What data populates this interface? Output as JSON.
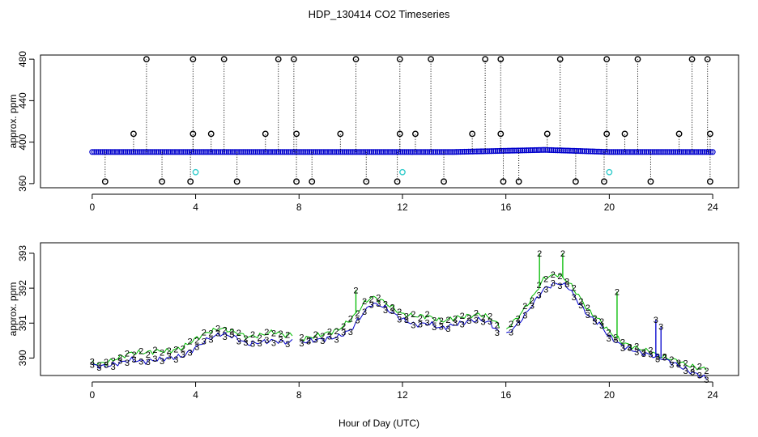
{
  "title": "HDP_130414  CO2 Timeseries",
  "xlabel": "Hour of Day (UTC)",
  "colors": {
    "black": "#000000",
    "blue": "#0000cc",
    "green": "#00bb00",
    "cyan": "#33cccc",
    "frame": "#000000"
  },
  "chart_data": [
    {
      "type": "scatter",
      "panel": "top",
      "ylabel": "approx. ppm",
      "xlim": [
        -2,
        25
      ],
      "ylim": [
        356,
        484
      ],
      "xticks": [
        0,
        4,
        8,
        12,
        16,
        20,
        24
      ],
      "yticks": [
        360,
        400,
        440,
        480
      ],
      "baseline": {
        "start": 390.5,
        "peak_hour": 17.5,
        "peak": 392.5,
        "end": 390.5
      },
      "high_spikes_480": [
        2.1,
        3.9,
        5.1,
        7.2,
        7.8,
        10.2,
        11.9,
        13.1,
        15.2,
        15.8,
        18.1,
        19.9,
        21.1,
        23.2,
        23.8
      ],
      "mid_spikes_408": [
        1.6,
        3.9,
        4.6,
        6.7,
        7.9,
        9.6,
        11.9,
        12.5,
        14.7,
        15.8,
        17.6,
        19.9,
        20.6,
        22.7,
        23.9
      ],
      "low_spikes_362": [
        0.5,
        2.7,
        3.8,
        5.6,
        7.9,
        8.5,
        10.6,
        11.8,
        13.6,
        15.9,
        16.5,
        18.7,
        19.8,
        21.6,
        23.9
      ],
      "cyan_points": [
        {
          "x": 4.0,
          "y": 371
        },
        {
          "x": 12.0,
          "y": 371
        },
        {
          "x": 20.0,
          "y": 371
        }
      ]
    },
    {
      "type": "line",
      "panel": "bottom",
      "ylabel": "approx. ppm",
      "xlim": [
        -2,
        25
      ],
      "ylim": [
        389.5,
        393.3
      ],
      "xticks": [
        0,
        4,
        8,
        12,
        16,
        20,
        24
      ],
      "yticks": [
        390,
        391,
        392,
        393
      ],
      "series": [
        {
          "name": "3",
          "color": "blue",
          "x": [
            0,
            0.5,
            1,
            1.5,
            2,
            2.5,
            3,
            3.5,
            4,
            4.5,
            5,
            5.5,
            6,
            6.5,
            7,
            7.5,
            7.9,
            8.1,
            8.5,
            9,
            9.5,
            10,
            10.5,
            10.8,
            11.2,
            11.6,
            12,
            12.5,
            13,
            13.5,
            14,
            14.5,
            15,
            15.4,
            15.7,
            16,
            16.5,
            17,
            17.5,
            18,
            18.4,
            18.8,
            19.2,
            19.6,
            20,
            20.5,
            21,
            21.5,
            22,
            22.5,
            23,
            23.5,
            23.8
          ],
          "y": [
            389.8,
            389.75,
            389.85,
            389.95,
            389.9,
            389.95,
            390.0,
            390.05,
            390.3,
            390.55,
            390.7,
            390.6,
            390.4,
            390.45,
            390.5,
            390.45,
            390.5,
            390.45,
            390.5,
            390.55,
            390.6,
            390.8,
            391.3,
            391.55,
            391.5,
            391.3,
            391.1,
            390.95,
            391.0,
            390.85,
            390.95,
            391.05,
            391.1,
            391.0,
            390.75,
            390.65,
            391.0,
            391.5,
            392.0,
            392.15,
            392.05,
            391.6,
            391.2,
            391.0,
            390.6,
            390.35,
            390.2,
            390.1,
            390.0,
            389.85,
            389.65,
            389.5,
            389.4
          ]
        },
        {
          "name": "2",
          "color": "green",
          "x": [
            0,
            0.5,
            1,
            1.5,
            2,
            2.5,
            3,
            3.5,
            4,
            4.5,
            5,
            5.5,
            6,
            6.5,
            7,
            7.5,
            7.9,
            8.1,
            8.5,
            9,
            9.5,
            10,
            10.5,
            10.8,
            11.2,
            11.6,
            12,
            12.5,
            13,
            13.5,
            14,
            14.5,
            15,
            15.4,
            15.7,
            16,
            16.5,
            17,
            17.5,
            18,
            18.4,
            18.8,
            19.2,
            19.6,
            20,
            20.5,
            21,
            21.5,
            22,
            22.5,
            23,
            23.5,
            23.8
          ],
          "y": [
            389.85,
            389.85,
            390.0,
            390.15,
            390.15,
            390.2,
            390.2,
            390.3,
            390.55,
            390.75,
            390.85,
            390.75,
            390.6,
            390.65,
            390.75,
            390.65,
            390.7,
            390.55,
            390.6,
            390.7,
            390.8,
            391.1,
            391.55,
            391.75,
            391.65,
            391.45,
            391.25,
            391.2,
            391.2,
            391.05,
            391.15,
            391.2,
            391.25,
            391.15,
            390.95,
            390.8,
            391.2,
            391.7,
            392.3,
            392.4,
            392.2,
            391.8,
            391.35,
            391.1,
            390.75,
            390.45,
            390.3,
            390.2,
            390.05,
            389.95,
            389.8,
            389.7,
            389.7
          ]
        }
      ],
      "green_spikes": [
        {
          "x": 10.2,
          "y": 391.95
        },
        {
          "x": 17.3,
          "y": 393.0
        },
        {
          "x": 18.2,
          "y": 393.0
        },
        {
          "x": 20.3,
          "y": 391.9
        }
      ],
      "blue_spikes": [
        {
          "x": 21.8,
          "y": 391.1
        },
        {
          "x": 22.0,
          "y": 390.9
        }
      ]
    }
  ]
}
